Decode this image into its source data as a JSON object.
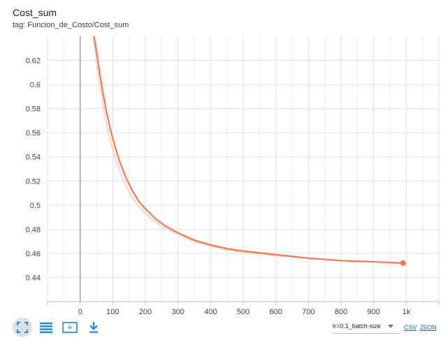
{
  "header": {
    "title": "Cost_sum",
    "tag": "tag: Funcion_de_Costo/Cost_sum"
  },
  "toolbar": {
    "buttons": [
      {
        "name": "fit-domain-icon",
        "active": true
      },
      {
        "name": "toggle-log-scale-icon",
        "active": false
      },
      {
        "name": "zoom-selection-icon",
        "active": false
      },
      {
        "name": "download-icon",
        "active": false
      }
    ],
    "accent": "#1e88e5"
  },
  "run_selector": {
    "value": "lr=0.1_batch-size"
  },
  "links": {
    "csv": "CSV",
    "json": "JSON"
  },
  "chart_data": {
    "type": "line",
    "xlim": [
      -100,
      1100
    ],
    "ylim": [
      0.42,
      0.64
    ],
    "x_ticks": [
      0,
      100,
      200,
      300,
      400,
      500,
      600,
      700,
      800,
      900,
      1000
    ],
    "x_tick_labels": [
      "0",
      "100",
      "200",
      "300",
      "400",
      "500",
      "600",
      "700",
      "800",
      "900",
      "1k"
    ],
    "y_ticks": [
      0.44,
      0.46,
      0.48,
      0.5,
      0.52,
      0.54,
      0.56,
      0.58,
      0.6,
      0.62
    ],
    "y_tick_labels": [
      "0.44",
      "0.46",
      "0.48",
      "0.5",
      "0.52",
      "0.54",
      "0.56",
      "0.58",
      "0.6",
      "0.62"
    ],
    "grid": true,
    "series": [
      {
        "color": "#ff7043",
        "smoothed": true,
        "x": [
          40,
          50,
          60,
          70,
          80,
          90,
          100,
          120,
          140,
          160,
          180,
          200,
          230,
          260,
          300,
          350,
          400,
          450,
          500,
          600,
          700,
          800,
          900,
          990
        ],
        "y": [
          0.645,
          0.628,
          0.609,
          0.593,
          0.578,
          0.566,
          0.555,
          0.537,
          0.523,
          0.512,
          0.503,
          0.497,
          0.489,
          0.483,
          0.477,
          0.471,
          0.467,
          0.464,
          0.462,
          0.459,
          0.456,
          0.454,
          0.453,
          0.452
        ]
      },
      {
        "color": "#ffccbc",
        "smoothed": false,
        "x": [
          40,
          50,
          60,
          70,
          80,
          90,
          100,
          120,
          140,
          160,
          180,
          200,
          230,
          260,
          300,
          350,
          400,
          450,
          500,
          600,
          700,
          800,
          900,
          990
        ],
        "y": [
          0.64,
          0.619,
          0.6,
          0.583,
          0.568,
          0.556,
          0.546,
          0.529,
          0.516,
          0.506,
          0.499,
          0.493,
          0.486,
          0.481,
          0.476,
          0.47,
          0.466,
          0.463,
          0.461,
          0.458,
          0.456,
          0.454,
          0.453,
          0.452
        ]
      }
    ]
  }
}
